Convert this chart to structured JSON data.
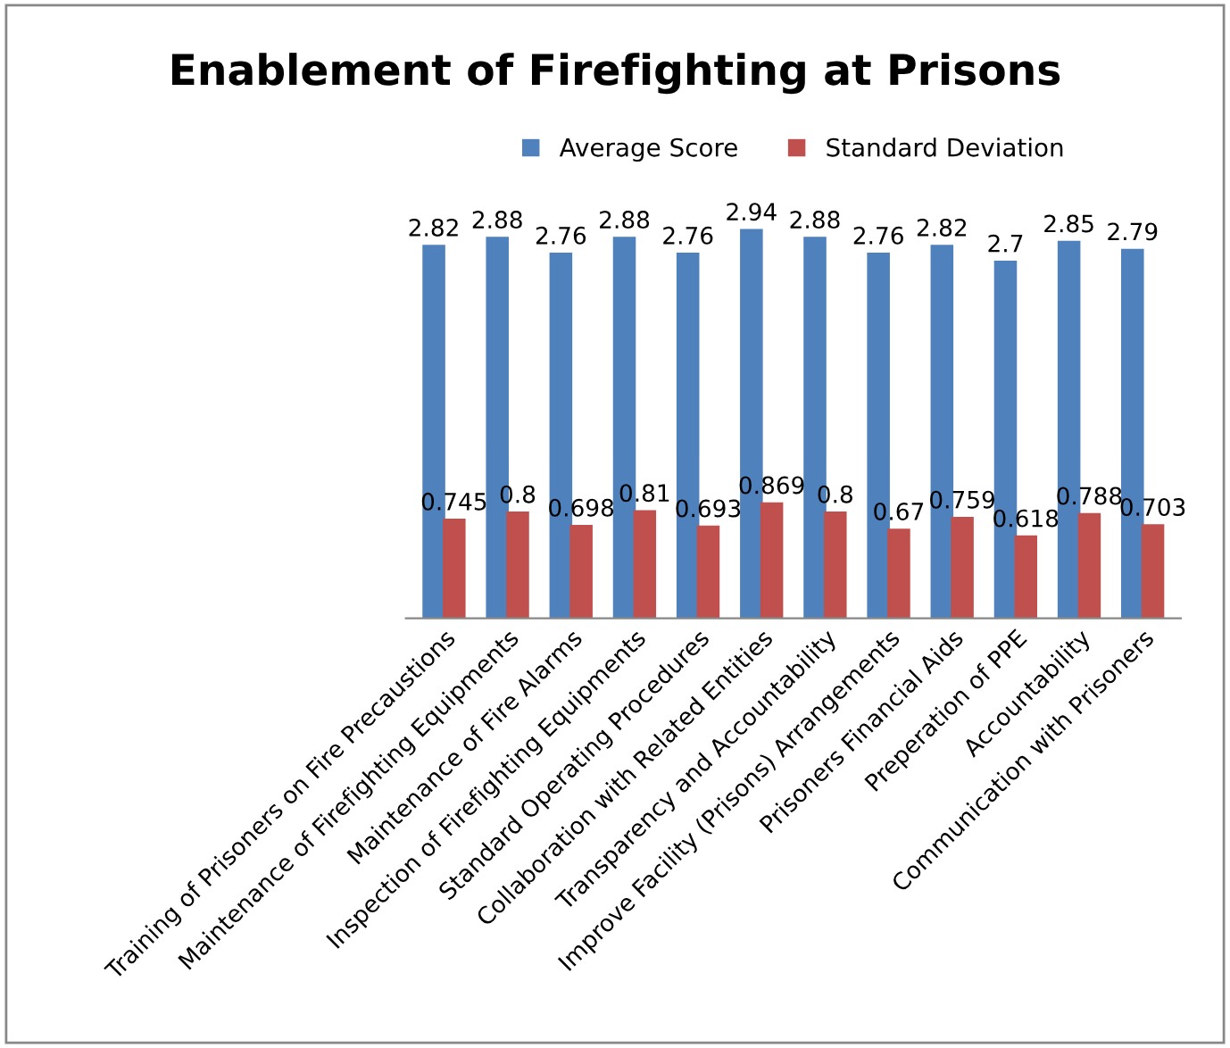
{
  "chart_data": {
    "type": "bar",
    "title": "Enablement of Firefighting at Prisons",
    "categories": [
      "Training of Prisoners on Fire Precaustions",
      "Maintenance of Firefighting Equipments",
      "Maintenance of Fire Alarms",
      "Inspection of Firefighting Equipments",
      "Standard Operating Procedures",
      "Collaboration with Related Entities",
      "Transparency and Accountability",
      "Improve Facility (Prisons) Arrangements",
      "Prisoners Financial Aids",
      "Preperation of PPE",
      "Accountability",
      "Communication with Prisoners"
    ],
    "series": [
      {
        "name": "Average Score",
        "color": "#4f81bd",
        "values": [
          2.82,
          2.88,
          2.76,
          2.88,
          2.76,
          2.94,
          2.88,
          2.76,
          2.82,
          2.7,
          2.85,
          2.79
        ]
      },
      {
        "name": "Standard Deviation",
        "color": "#c0504d",
        "values": [
          0.745,
          0.8,
          0.698,
          0.81,
          0.693,
          0.869,
          0.8,
          0.67,
          0.759,
          0.618,
          0.788,
          0.703
        ]
      }
    ],
    "data_labels": true,
    "legend": "top",
    "grid": false,
    "tick_labels": "x"
  }
}
